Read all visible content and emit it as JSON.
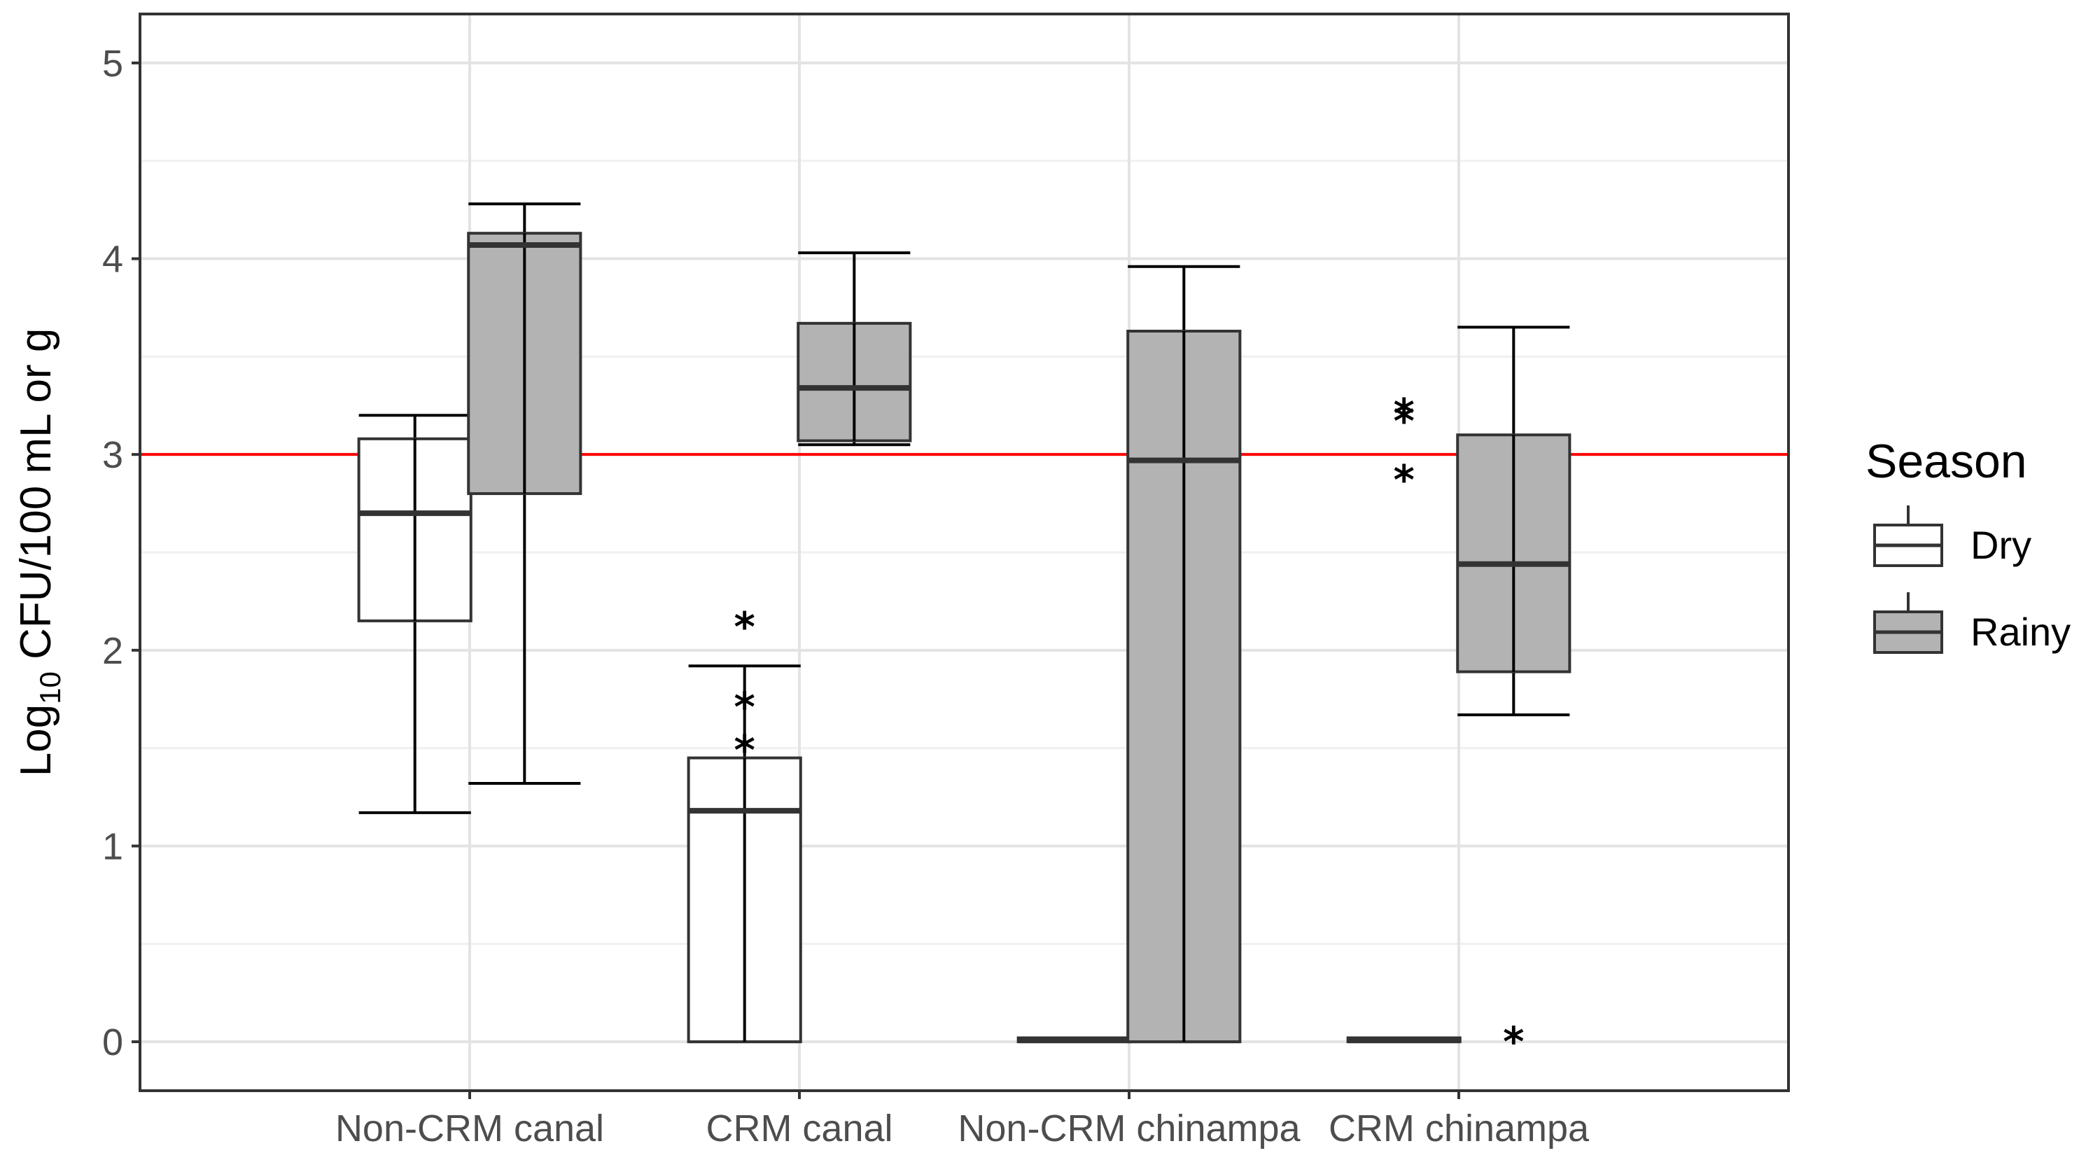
{
  "chart_data": {
    "type": "boxplot",
    "ylabel_prefix": "Log",
    "ylabel_subscript": "10",
    "ylabel_suffix": " CFU/100 mL or g",
    "xlabel": "",
    "ylim": [
      -0.25,
      5.25
    ],
    "yticks": [
      0,
      1,
      2,
      3,
      4,
      5
    ],
    "grid": true,
    "reference_line": {
      "value": 3.0,
      "color": "#ff0000"
    },
    "categories": [
      "Non-CRM canal",
      "CRM canal",
      "Non-CRM chinampa",
      "CRM chinampa"
    ],
    "legend": {
      "title": "Season",
      "position": "right",
      "entries": [
        {
          "name": "Dry",
          "fill": "#ffffff"
        },
        {
          "name": "Rainy",
          "fill": "#b3b3b3"
        }
      ]
    },
    "series": [
      {
        "name": "Dry",
        "fill": "#ffffff",
        "boxes": [
          {
            "category": "Non-CRM canal",
            "min": 1.17,
            "q1": 2.15,
            "median": 2.7,
            "q3": 3.08,
            "max": 3.2,
            "outliers": []
          },
          {
            "category": "CRM canal",
            "min": 0.0,
            "q1": 0.0,
            "median": 1.18,
            "q3": 1.45,
            "max": 1.92,
            "outliers": [
              2.12,
              1.71,
              1.49
            ]
          },
          {
            "category": "Non-CRM chinampa",
            "min": 0.0,
            "q1": 0.0,
            "median": 0.01,
            "q3": 0.02,
            "max": 0.02,
            "outliers": []
          },
          {
            "category": "CRM chinampa",
            "min": 0.0,
            "q1": 0.0,
            "median": 0.01,
            "q3": 0.02,
            "max": 0.02,
            "outliers": [
              3.21,
              3.17,
              2.87
            ]
          }
        ]
      },
      {
        "name": "Rainy",
        "fill": "#b3b3b3",
        "boxes": [
          {
            "category": "Non-CRM canal",
            "min": 1.32,
            "q1": 2.8,
            "median": 4.07,
            "q3": 4.13,
            "max": 4.28,
            "outliers": []
          },
          {
            "category": "CRM canal",
            "min": 3.05,
            "q1": 3.07,
            "median": 3.34,
            "q3": 3.67,
            "max": 4.03,
            "outliers": []
          },
          {
            "category": "Non-CRM chinampa",
            "min": 0.0,
            "q1": 0.0,
            "median": 2.97,
            "q3": 3.63,
            "max": 3.96,
            "outliers": []
          },
          {
            "category": "CRM chinampa",
            "min": 1.67,
            "q1": 1.89,
            "median": 2.44,
            "q3": 3.1,
            "max": 3.65,
            "outliers": [
              0.0
            ]
          }
        ]
      }
    ]
  }
}
